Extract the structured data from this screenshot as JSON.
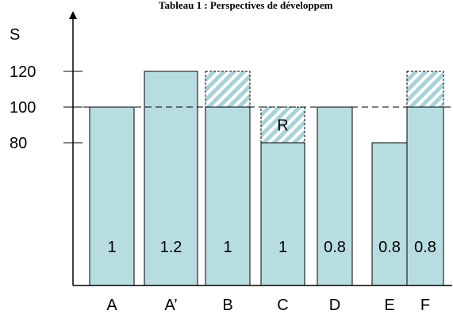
{
  "chart_data": {
    "type": "bar",
    "title": "Tableau 1 : Perspectives de développem",
    "ylabel": "S",
    "ylim": [
      0,
      135
    ],
    "yticks": [
      80,
      100,
      120
    ],
    "reference_line": 100,
    "grid": false,
    "categories": [
      "A",
      "A’",
      "B",
      "C",
      "D",
      "E",
      "F"
    ],
    "values": [
      100,
      120,
      100,
      80,
      100,
      80,
      100
    ],
    "potential_values": [
      null,
      null,
      120,
      100,
      null,
      null,
      120
    ],
    "bar_labels": [
      "1",
      "1.2",
      "1",
      "1",
      "0.8",
      "0.8",
      "0.8"
    ],
    "annotations": [
      {
        "category": "C",
        "text": "R"
      }
    ],
    "colors": {
      "bar_fill": "#b8dde0",
      "bar_stroke": "#000000",
      "hatch_stripe": "#a8d2d8",
      "axis": "#000000"
    }
  }
}
